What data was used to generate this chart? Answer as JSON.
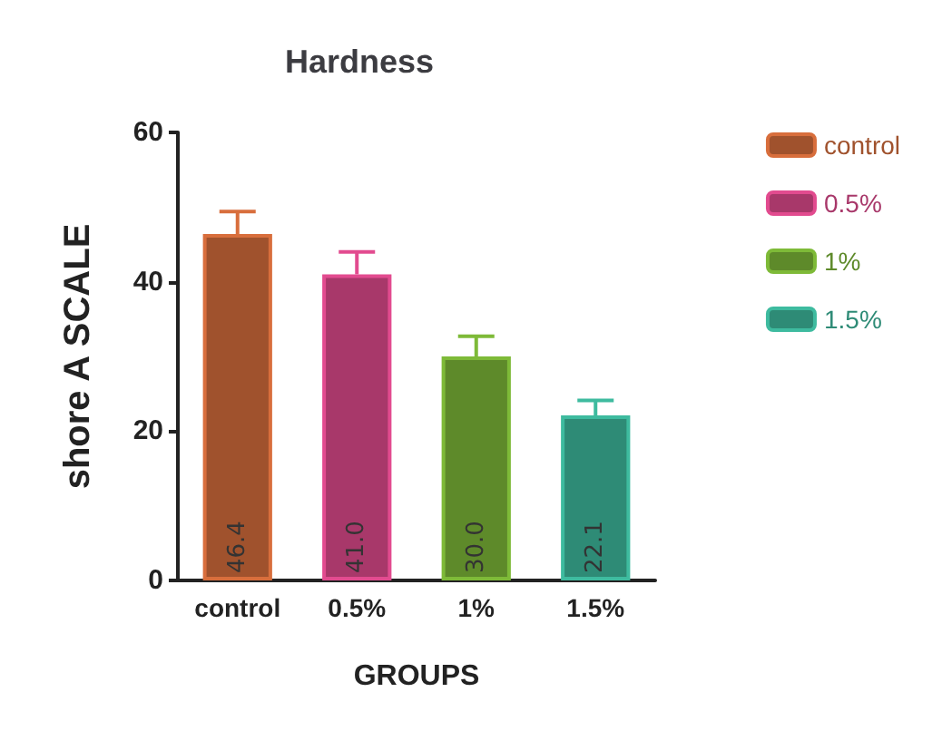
{
  "chart_data": {
    "type": "bar",
    "title": "Hardness",
    "xlabel": "GROUPS",
    "ylabel": "shore A SCALE",
    "categories": [
      "control",
      "0.5%",
      "1%",
      "1.5%"
    ],
    "series": [
      {
        "name": "control",
        "color": "#a0522d",
        "values": [
          46.4,
          null,
          null,
          null
        ],
        "value_labels": [
          "46.4",
          null,
          null,
          null
        ],
        "errors": [
          [
            46.4,
            49.4
          ],
          null,
          null,
          null
        ]
      },
      {
        "name": "0.5%",
        "color": "#a8386a",
        "values": [
          null,
          41.0,
          null,
          null
        ],
        "value_labels": [
          null,
          "41.0",
          null,
          null
        ],
        "errors": [
          null,
          [
            41.0,
            44.0
          ],
          null,
          null
        ]
      },
      {
        "name": "1%",
        "color": "#5e8a2a",
        "values": [
          null,
          null,
          30.0,
          null
        ],
        "value_labels": [
          null,
          null,
          "30.0",
          null
        ],
        "errors": [
          null,
          null,
          [
            30.0,
            32.7
          ],
          null
        ]
      },
      {
        "name": "1.5%",
        "color": "#2e8b76",
        "values": [
          null,
          null,
          null,
          22.1
        ],
        "value_labels": [
          null,
          null,
          null,
          "22.1"
        ],
        "errors": [
          null,
          null,
          null,
          [
            22.1,
            24.1
          ]
        ]
      }
    ],
    "ylim": [
      0,
      60
    ],
    "yticks": [
      0,
      20,
      40,
      60
    ],
    "grid": false,
    "legend": "top right"
  }
}
